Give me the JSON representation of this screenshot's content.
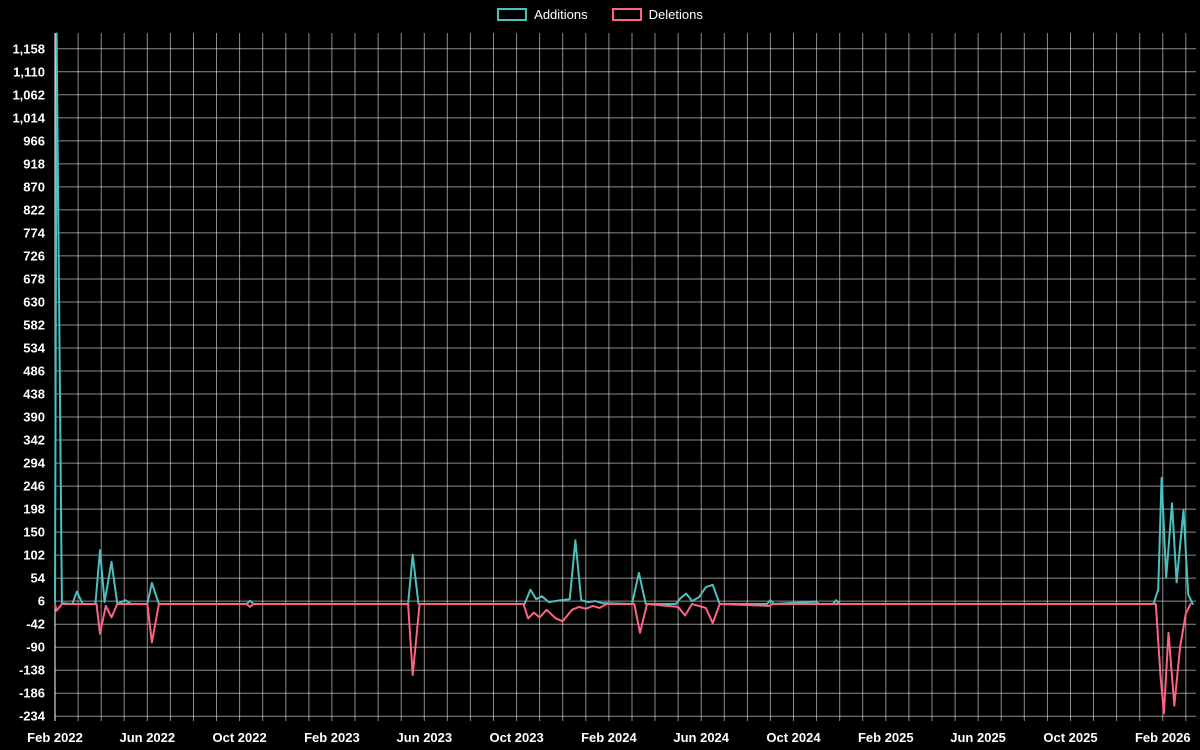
{
  "legend": {
    "items": [
      {
        "label": "Additions",
        "color": "#4bc0c0"
      },
      {
        "label": "Deletions",
        "color": "#ff6384"
      }
    ]
  },
  "chart_data": {
    "type": "line",
    "title": "",
    "legend_position": "top",
    "grid": true,
    "background": "#000000",
    "grid_color": "rgba(255,255,255,0.55)",
    "axis_color": "#ffffff",
    "text_color": "#ffffff",
    "x_axis": {
      "unit": "months since Feb 2022",
      "range_months": [
        0,
        49.44
      ],
      "tick_positions_months": [
        0,
        4,
        8,
        12,
        16,
        20,
        24,
        28,
        32,
        36,
        40,
        44,
        48
      ],
      "tick_labels": [
        "Feb 2022",
        "Jun 2022",
        "Oct 2022",
        "Feb 2023",
        "Jun 2023",
        "Oct 2023",
        "Feb 2024",
        "Jun 2024",
        "Oct 2024",
        "Feb 2025",
        "Jun 2025",
        "Oct 2025",
        "Feb 2026"
      ]
    },
    "y_axis": {
      "range": [
        -244,
        1191
      ],
      "tick_step": 48,
      "tick_values": [
        1158,
        1110,
        1062,
        1014,
        966,
        918,
        870,
        822,
        774,
        726,
        678,
        630,
        582,
        534,
        486,
        438,
        390,
        342,
        294,
        246,
        198,
        150,
        102,
        54,
        6,
        -42,
        -90,
        -138,
        -186,
        -234
      ],
      "tick_labels": [
        "1,158",
        "1,110",
        "1,062",
        "1,014",
        "966",
        "918",
        "870",
        "822",
        "774",
        "726",
        "678",
        "630",
        "582",
        "534",
        "486",
        "438",
        "390",
        "342",
        "294",
        "246",
        "198",
        "150",
        "102",
        "54",
        "6",
        "-42",
        "-90",
        "-138",
        "-186",
        "-234"
      ]
    },
    "series": [
      {
        "name": "Additions",
        "color": "#4bc0c0",
        "points": [
          [
            0,
            4
          ],
          [
            0.07,
            1190
          ],
          [
            0.3,
            2
          ],
          [
            0.75,
            0
          ],
          [
            0.95,
            26
          ],
          [
            1.2,
            0
          ],
          [
            1.75,
            0
          ],
          [
            1.95,
            112
          ],
          [
            2.15,
            4
          ],
          [
            2.45,
            88
          ],
          [
            2.7,
            0
          ],
          [
            3.05,
            8
          ],
          [
            3.3,
            0
          ],
          [
            4.0,
            0
          ],
          [
            4.2,
            44
          ],
          [
            4.5,
            0
          ],
          [
            8.3,
            0
          ],
          [
            8.45,
            7
          ],
          [
            8.6,
            0
          ],
          [
            15.3,
            0
          ],
          [
            15.5,
            103
          ],
          [
            15.75,
            0
          ],
          [
            20.35,
            0
          ],
          [
            20.6,
            30
          ],
          [
            20.85,
            10
          ],
          [
            21.1,
            16
          ],
          [
            21.4,
            4
          ],
          [
            21.9,
            8
          ],
          [
            22.3,
            10
          ],
          [
            22.55,
            133
          ],
          [
            22.8,
            8
          ],
          [
            23.1,
            4
          ],
          [
            23.4,
            6
          ],
          [
            23.7,
            2
          ],
          [
            25.0,
            0
          ],
          [
            25.3,
            65
          ],
          [
            25.6,
            0
          ],
          [
            26.9,
            0
          ],
          [
            27.1,
            12
          ],
          [
            27.35,
            22
          ],
          [
            27.6,
            6
          ],
          [
            27.9,
            14
          ],
          [
            28.2,
            35
          ],
          [
            28.5,
            40
          ],
          [
            28.8,
            0
          ],
          [
            30.85,
            0
          ],
          [
            31.0,
            8
          ],
          [
            31.15,
            0
          ],
          [
            32.95,
            5
          ],
          [
            33.1,
            0
          ],
          [
            33.7,
            0
          ],
          [
            33.85,
            8
          ],
          [
            34.0,
            0
          ],
          [
            47.6,
            0
          ],
          [
            47.8,
            30
          ],
          [
            47.95,
            263
          ],
          [
            48.15,
            55
          ],
          [
            48.4,
            210
          ],
          [
            48.6,
            45
          ],
          [
            48.9,
            196
          ],
          [
            49.1,
            20
          ],
          [
            49.3,
            0
          ]
        ]
      },
      {
        "name": "Deletions",
        "color": "#ff6384",
        "points": [
          [
            0,
            0
          ],
          [
            0.07,
            -14
          ],
          [
            0.3,
            0
          ],
          [
            1.8,
            0
          ],
          [
            1.95,
            -62
          ],
          [
            2.2,
            -4
          ],
          [
            2.45,
            -28
          ],
          [
            2.7,
            0
          ],
          [
            4.0,
            0
          ],
          [
            4.2,
            -80
          ],
          [
            4.5,
            0
          ],
          [
            8.3,
            0
          ],
          [
            8.45,
            -6
          ],
          [
            8.6,
            0
          ],
          [
            15.3,
            0
          ],
          [
            15.5,
            -148
          ],
          [
            15.8,
            0
          ],
          [
            20.3,
            0
          ],
          [
            20.5,
            -30
          ],
          [
            20.75,
            -18
          ],
          [
            21.0,
            -28
          ],
          [
            21.3,
            -12
          ],
          [
            21.7,
            -30
          ],
          [
            22.0,
            -36
          ],
          [
            22.4,
            -12
          ],
          [
            22.7,
            -6
          ],
          [
            23.0,
            -10
          ],
          [
            23.3,
            -4
          ],
          [
            23.6,
            -8
          ],
          [
            23.9,
            0
          ],
          [
            25.1,
            0
          ],
          [
            25.35,
            -60
          ],
          [
            25.65,
            0
          ],
          [
            27.0,
            -6
          ],
          [
            27.3,
            -24
          ],
          [
            27.6,
            0
          ],
          [
            28.2,
            -8
          ],
          [
            28.5,
            -40
          ],
          [
            28.8,
            0
          ],
          [
            30.95,
            -4
          ],
          [
            31.1,
            0
          ],
          [
            47.7,
            0
          ],
          [
            47.9,
            -150
          ],
          [
            48.05,
            -228
          ],
          [
            48.25,
            -60
          ],
          [
            48.5,
            -212
          ],
          [
            48.75,
            -90
          ],
          [
            49.0,
            -20
          ],
          [
            49.2,
            0
          ]
        ]
      }
    ]
  }
}
